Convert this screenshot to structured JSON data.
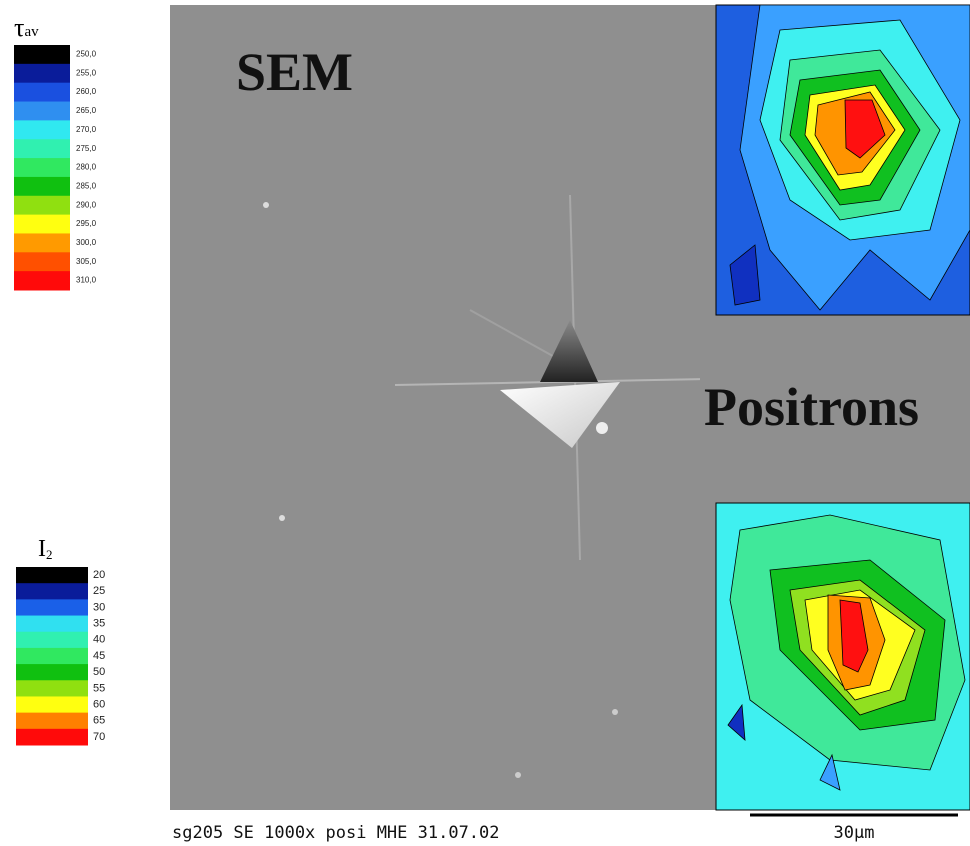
{
  "legends": [
    {
      "symbol": "τ",
      "subscript": "av",
      "labels": [
        "250,0",
        "255,0",
        "260,0",
        "265,0",
        "270,0",
        "275,0",
        "280,0",
        "285,0",
        "290,0",
        "295,0",
        "300,0",
        "305,0",
        "310,0"
      ]
    },
    {
      "symbol": "I",
      "subscript": "2",
      "labels": [
        "20",
        "25",
        "30",
        "35",
        "40",
        "45",
        "50",
        "55",
        "60",
        "65",
        "70"
      ]
    }
  ],
  "image": {
    "label": "SEM"
  },
  "maps": {
    "label": "Positrons"
  },
  "caption": {
    "info": "sg205 SE 1000x posi MHE 31.07.02",
    "scale": "30µm"
  }
}
